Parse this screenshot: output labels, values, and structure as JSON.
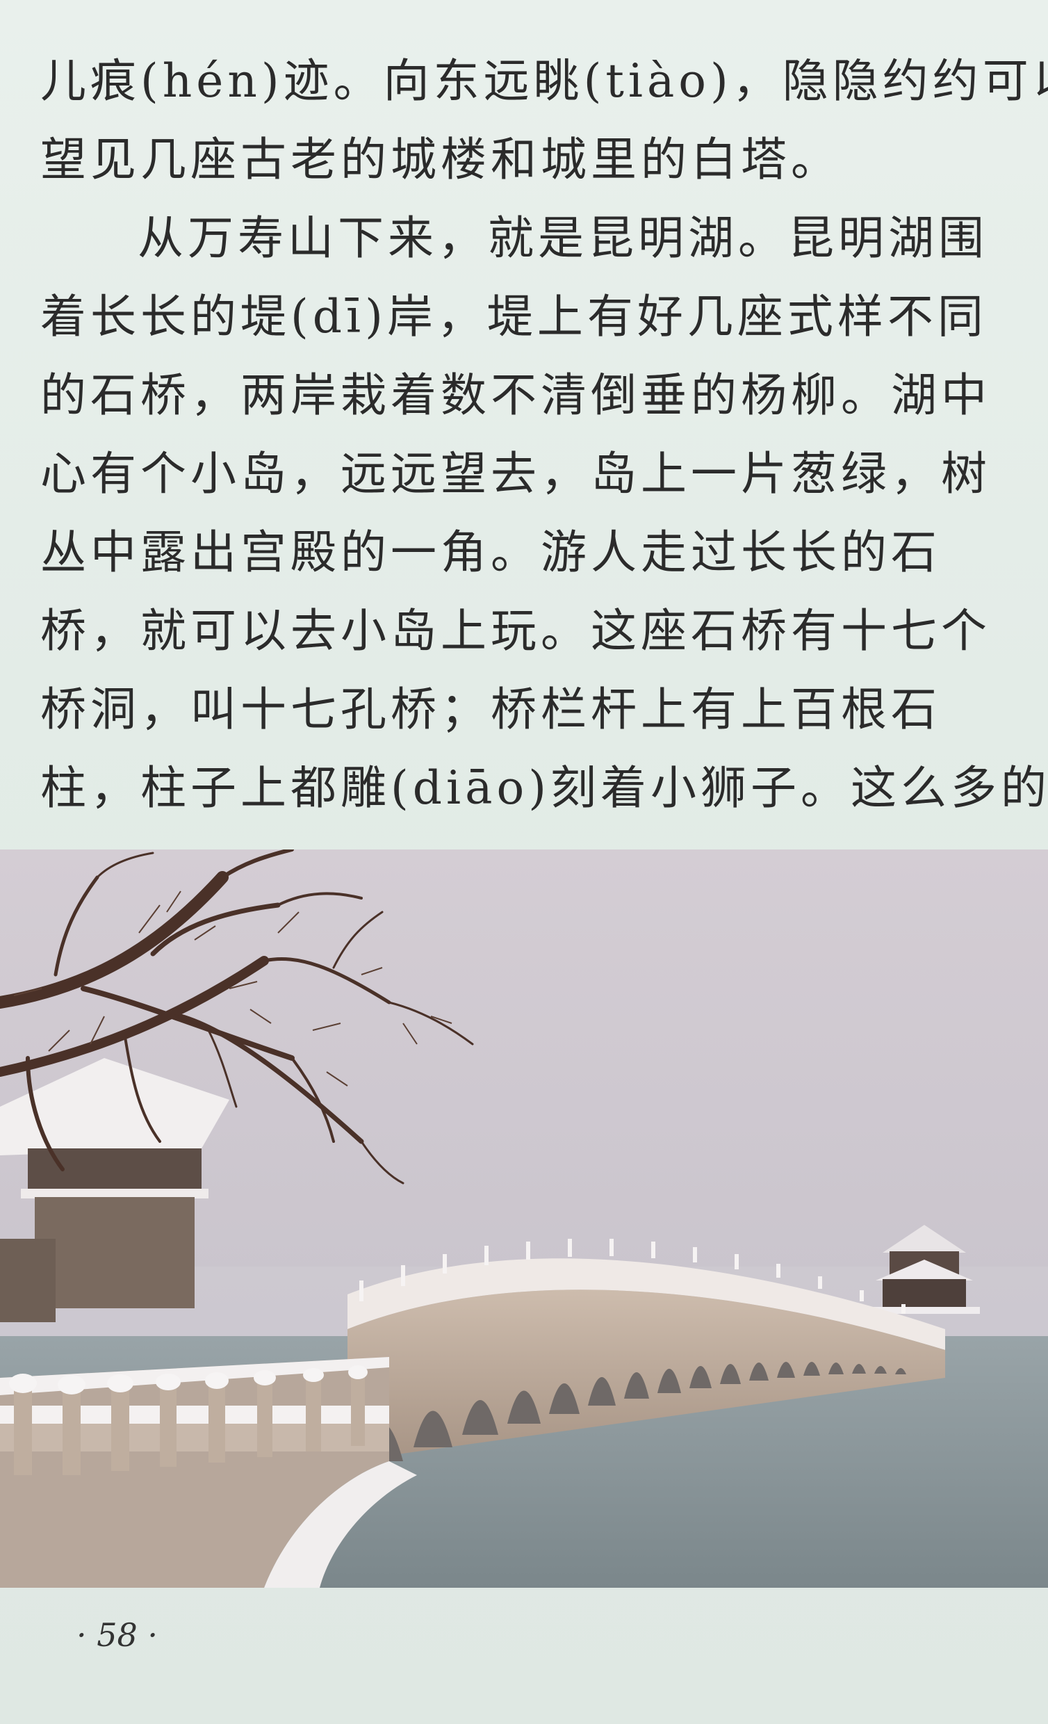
{
  "paragraphs": [
    {
      "lines": [
        "儿痕(hén)迹。向东远眺(tiào)，隐隐约约可以",
        "望见几座古老的城楼和城里的白塔。"
      ]
    },
    {
      "lines": [
        "从万寿山下来，就是昆明湖。昆明湖围",
        "着长长的堤(dī)岸，堤上有好几座式样不同",
        "的石桥，两岸栽着数不清倒垂的杨柳。湖中",
        "心有个小岛，远远望去，岛上一片葱绿，树",
        "丛中露出宫殿的一角。游人走过长长的石",
        "桥，就可以去小岛上玩。这座石桥有十七个",
        "桥洞，叫十七孔桥；桥栏杆上有上百根石",
        "柱，柱子上都雕(diāo)刻着小狮子。这么多的"
      ]
    }
  ],
  "photo": {
    "subject": "seventeen-arch-bridge-in-snow",
    "colors": {
      "sky": "#c9c3cc",
      "water": "#8a979b",
      "stone": "#b9a89a",
      "snow": "#f4f2f2",
      "tree": "#4a3128"
    }
  },
  "footer": {
    "page_number": "· 58 ·"
  }
}
